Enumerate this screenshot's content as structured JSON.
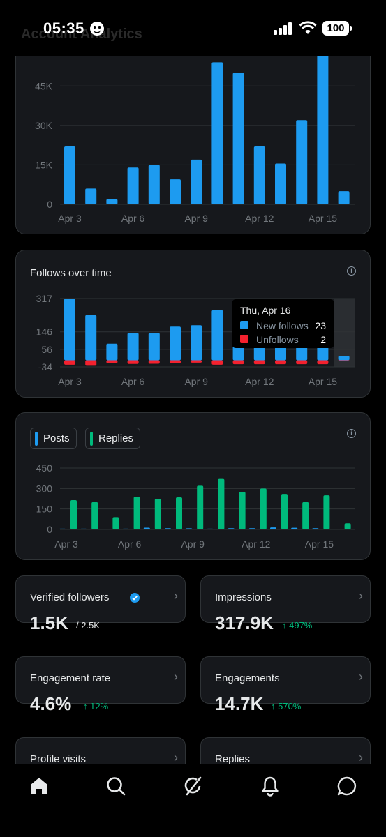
{
  "status": {
    "time": "05:35",
    "battery": "100",
    "faded_title": "Account Analytics"
  },
  "impressions_chart": {
    "chart_data": {
      "type": "bar",
      "categories": [
        "Apr 3",
        "Apr 4",
        "Apr 5",
        "Apr 6",
        "Apr 7",
        "Apr 8",
        "Apr 9",
        "Apr 10",
        "Apr 11",
        "Apr 12",
        "Apr 13",
        "Apr 14",
        "Apr 15",
        "Apr 16"
      ],
      "values": [
        22000,
        6000,
        2000,
        14000,
        15000,
        9500,
        17000,
        54000,
        50000,
        22000,
        15500,
        32000,
        57000,
        5000
      ],
      "x_tick_labels": [
        "Apr 3",
        "Apr 6",
        "Apr 9",
        "Apr 12",
        "Apr 15"
      ],
      "y_tick_labels": [
        "45K",
        "30K",
        "15K",
        "0"
      ],
      "ylim": [
        0,
        57000
      ],
      "color": "#1d9bf0"
    }
  },
  "follows_chart": {
    "title": "Follows over time",
    "chart_data": {
      "type": "bar",
      "categories": [
        "Apr 3",
        "Apr 4",
        "Apr 5",
        "Apr 6",
        "Apr 7",
        "Apr 8",
        "Apr 9",
        "Apr 10",
        "Apr 11",
        "Apr 12",
        "Apr 13",
        "Apr 14",
        "Apr 15",
        "Apr 16"
      ],
      "series": [
        {
          "name": "New follows",
          "color": "#1d9bf0",
          "values": [
            317,
            232,
            85,
            140,
            140,
            173,
            180,
            257,
            85,
            85,
            85,
            85,
            85,
            23
          ]
        },
        {
          "name": "Unfollows",
          "color": "#f4212e",
          "values": [
            -23,
            -28,
            -15,
            -19,
            -18,
            -16,
            -12,
            -23,
            -20,
            -20,
            -20,
            -20,
            -20,
            -2
          ]
        }
      ],
      "x_tick_labels": [
        "Apr 3",
        "Apr 6",
        "Apr 9",
        "Apr 12",
        "Apr 15"
      ],
      "y_tick_labels": [
        "317",
        "146",
        "56",
        "-34"
      ],
      "ylim": [
        -34,
        317
      ]
    },
    "tooltip": {
      "date": "Thu, Apr 16",
      "new_label": "New follows",
      "new_value": "23",
      "unf_label": "Unfollows",
      "unf_value": "2"
    }
  },
  "posts_chart": {
    "chip_posts": "Posts",
    "chip_replies": "Replies",
    "chart_data": {
      "type": "bar",
      "categories": [
        "Apr 3",
        "Apr 4",
        "Apr 5",
        "Apr 6",
        "Apr 7",
        "Apr 8",
        "Apr 9",
        "Apr 10",
        "Apr 11",
        "Apr 12",
        "Apr 13",
        "Apr 14",
        "Apr 15",
        "Apr 16"
      ],
      "series": [
        {
          "name": "Posts",
          "color": "#1d9bf0",
          "values": [
            6,
            6,
            3,
            6,
            13,
            9,
            8,
            6,
            9,
            9,
            15,
            12,
            9,
            0
          ]
        },
        {
          "name": "Replies",
          "color": "#00ba7c",
          "values": [
            215,
            200,
            90,
            240,
            225,
            235,
            320,
            370,
            275,
            300,
            260,
            200,
            250,
            45
          ]
        }
      ],
      "x_tick_labels": [
        "Apr 3",
        "Apr 6",
        "Apr 9",
        "Apr 12",
        "Apr 15"
      ],
      "y_tick_labels": [
        "450",
        "300",
        "150",
        "0"
      ],
      "ylim": [
        0,
        450
      ]
    }
  },
  "stats": {
    "verified": {
      "label": "Verified followers",
      "value": "1.5K",
      "sub": "/ 2.5K"
    },
    "impressions": {
      "label": "Impressions",
      "value": "317.9K",
      "delta": "↑ 497%"
    },
    "engagement_rate": {
      "label": "Engagement rate",
      "value": "4.6%",
      "delta": "↑ 12%"
    },
    "engagements": {
      "label": "Engagements",
      "value": "14.7K",
      "delta": "↑ 570%"
    },
    "profile_visits": {
      "label": "Profile visits"
    },
    "replies": {
      "label": "Replies"
    }
  },
  "icons": {
    "chevron": "›",
    "info": "i",
    "verified": "verified-badge-icon",
    "nav": [
      "home-icon",
      "search-icon",
      "grok-icon",
      "notifications-icon",
      "messages-icon"
    ]
  },
  "colors": {
    "accent": "#1d9bf0",
    "green": "#00ba7c",
    "red": "#f4212e",
    "card_bg": "#16181c",
    "border": "#2f3336"
  }
}
